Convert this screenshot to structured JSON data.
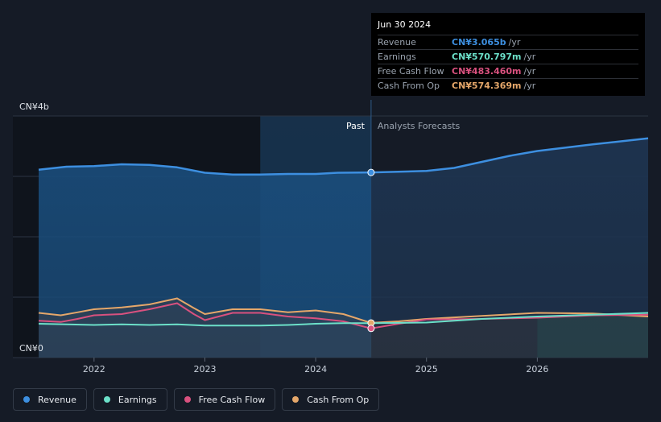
{
  "tooltip": {
    "date": "Jun 30 2024",
    "rows": [
      {
        "label": "Revenue",
        "value": "CN¥3.065b",
        "unit": "/yr",
        "color": "#3d8fe0"
      },
      {
        "label": "Earnings",
        "value": "CN¥570.797m",
        "unit": "/yr",
        "color": "#6ce0c9"
      },
      {
        "label": "Free Cash Flow",
        "value": "CN¥483.460m",
        "unit": "/yr",
        "color": "#d9517f"
      },
      {
        "label": "Cash From Op",
        "value": "CN¥574.369m",
        "unit": "/yr",
        "color": "#e5a76a"
      }
    ]
  },
  "legend": [
    {
      "label": "Revenue",
      "color": "#3d8fe0"
    },
    {
      "label": "Earnings",
      "color": "#6ce0c9"
    },
    {
      "label": "Free Cash Flow",
      "color": "#d9517f"
    },
    {
      "label": "Cash From Op",
      "color": "#e5a76a"
    }
  ],
  "chart_data": {
    "type": "line",
    "y_tick_labels": [
      "CN¥4b",
      "CN¥0"
    ],
    "ylim": [
      0,
      4
    ],
    "y_unit": "CN¥ billions",
    "xlim": [
      2021.5,
      2027.0
    ],
    "x_tick_labels": [
      "2022",
      "2023",
      "2024",
      "2025",
      "2026"
    ],
    "x_ticks": [
      2022,
      2023,
      2024,
      2025,
      2026
    ],
    "past_label": "Past",
    "forecast_label": "Analysts Forecasts",
    "divider_x": 2024.5,
    "highlight_x": 2023.5,
    "series": [
      {
        "name": "Revenue",
        "color": "#3d8fe0",
        "points": [
          [
            2021.5,
            3.11
          ],
          [
            2021.75,
            3.16
          ],
          [
            2022.0,
            3.17
          ],
          [
            2022.25,
            3.2
          ],
          [
            2022.5,
            3.19
          ],
          [
            2022.75,
            3.15
          ],
          [
            2023.0,
            3.06
          ],
          [
            2023.25,
            3.03
          ],
          [
            2023.5,
            3.03
          ],
          [
            2023.75,
            3.04
          ],
          [
            2024.0,
            3.04
          ],
          [
            2024.2,
            3.06
          ],
          [
            2024.5,
            3.065
          ],
          [
            2025.0,
            3.09
          ],
          [
            2025.25,
            3.14
          ],
          [
            2025.5,
            3.24
          ],
          [
            2025.75,
            3.34
          ],
          [
            2026.0,
            3.42
          ],
          [
            2026.5,
            3.53
          ],
          [
            2027.0,
            3.63
          ]
        ]
      },
      {
        "name": "Earnings",
        "color": "#6ce0c9",
        "points": [
          [
            2021.5,
            0.56
          ],
          [
            2021.75,
            0.55
          ],
          [
            2022.0,
            0.54
          ],
          [
            2022.25,
            0.55
          ],
          [
            2022.5,
            0.54
          ],
          [
            2022.75,
            0.55
          ],
          [
            2023.0,
            0.53
          ],
          [
            2023.25,
            0.53
          ],
          [
            2023.5,
            0.53
          ],
          [
            2023.75,
            0.54
          ],
          [
            2024.0,
            0.56
          ],
          [
            2024.25,
            0.57
          ],
          [
            2024.5,
            0.571
          ],
          [
            2025.0,
            0.58
          ],
          [
            2025.5,
            0.64
          ],
          [
            2026.0,
            0.68
          ],
          [
            2026.5,
            0.71
          ],
          [
            2027.0,
            0.74
          ]
        ]
      },
      {
        "name": "Free Cash Flow",
        "color": "#d9517f",
        "points": [
          [
            2021.5,
            0.61
          ],
          [
            2021.7,
            0.59
          ],
          [
            2021.85,
            0.64
          ],
          [
            2022.0,
            0.7
          ],
          [
            2022.25,
            0.72
          ],
          [
            2022.5,
            0.8
          ],
          [
            2022.75,
            0.9
          ],
          [
            2022.9,
            0.72
          ],
          [
            2023.0,
            0.62
          ],
          [
            2023.25,
            0.74
          ],
          [
            2023.5,
            0.74
          ],
          [
            2023.75,
            0.68
          ],
          [
            2024.0,
            0.65
          ],
          [
            2024.25,
            0.6
          ],
          [
            2024.5,
            0.483
          ],
          [
            2024.75,
            0.56
          ],
          [
            2025.0,
            0.63
          ],
          [
            2025.5,
            0.64
          ],
          [
            2026.0,
            0.66
          ],
          [
            2026.5,
            0.7
          ],
          [
            2027.0,
            0.71
          ]
        ]
      },
      {
        "name": "Cash From Op",
        "color": "#e5a76a",
        "points": [
          [
            2021.5,
            0.74
          ],
          [
            2021.7,
            0.7
          ],
          [
            2021.85,
            0.75
          ],
          [
            2022.0,
            0.8
          ],
          [
            2022.25,
            0.83
          ],
          [
            2022.5,
            0.88
          ],
          [
            2022.75,
            0.98
          ],
          [
            2022.9,
            0.82
          ],
          [
            2023.0,
            0.72
          ],
          [
            2023.25,
            0.8
          ],
          [
            2023.5,
            0.8
          ],
          [
            2023.75,
            0.75
          ],
          [
            2024.0,
            0.78
          ],
          [
            2024.25,
            0.72
          ],
          [
            2024.5,
            0.574
          ],
          [
            2024.75,
            0.6
          ],
          [
            2025.0,
            0.64
          ],
          [
            2025.5,
            0.69
          ],
          [
            2026.0,
            0.74
          ],
          [
            2026.5,
            0.73
          ],
          [
            2027.0,
            0.68
          ]
        ]
      }
    ],
    "highlight_point_x": 2024.5
  }
}
